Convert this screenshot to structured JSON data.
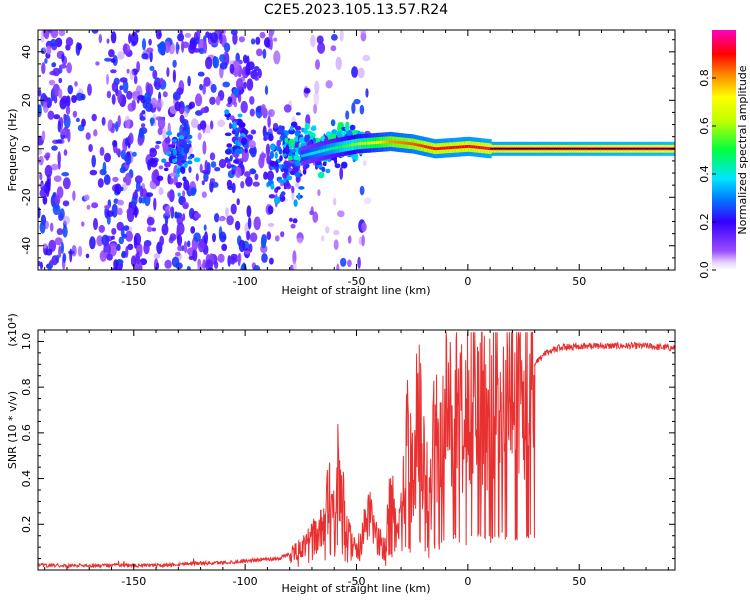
{
  "figure_title": "C2E5.2023.105.13.57.R24",
  "colorbar": {
    "label": "Normalized spectral amplitude",
    "ticks": [
      0.0,
      0.2,
      0.4,
      0.6,
      0.8
    ],
    "tick_labels": [
      "0.0",
      "0.2",
      "0.4",
      "0.6",
      "0.8"
    ],
    "range": [
      0,
      1
    ]
  },
  "chart_data": [
    {
      "type": "heatmap",
      "xlabel": "Height of straight line (km)",
      "ylabel": "Frequency (Hz)",
      "xlim": [
        -193,
        93
      ],
      "ylim": [
        -50,
        49
      ],
      "x_ticks": [
        -150,
        -100,
        -50,
        0,
        50
      ],
      "x_tick_labels": [
        "-150",
        "-100",
        "-50",
        "0",
        "50"
      ],
      "y_ticks": [
        -40,
        -20,
        0,
        20,
        40
      ],
      "y_tick_labels": [
        "-40",
        "-20",
        "0",
        "20",
        "40"
      ],
      "ridge_frequency_hz": 0,
      "ridge_profile": [
        {
          "x": -75,
          "y": -3,
          "amp": 0.35
        },
        {
          "x": -62,
          "y": 0,
          "amp": 0.45
        },
        {
          "x": -50,
          "y": 2,
          "amp": 0.6
        },
        {
          "x": -35,
          "y": 3,
          "amp": 0.8
        },
        {
          "x": -25,
          "y": 2,
          "amp": 0.85
        },
        {
          "x": -15,
          "y": 0,
          "amp": 0.9
        },
        {
          "x": 0,
          "y": 1,
          "amp": 0.92
        },
        {
          "x": 10,
          "y": 0,
          "amp": 0.95
        },
        {
          "x": 93,
          "y": 0,
          "amp": 1.0
        }
      ],
      "colormap": "rainbow (violet=0 → red=1)"
    },
    {
      "type": "line",
      "xlabel": "Height of straight line (km)",
      "ylabel": "SNR (10 * v/v)",
      "yscale_label": "(x10⁴)",
      "xlim": [
        -193,
        93
      ],
      "ylim": [
        0,
        1.05
      ],
      "x_ticks": [
        -150,
        -100,
        -50,
        0,
        50
      ],
      "x_tick_labels": [
        "-150",
        "-100",
        "-50",
        "0",
        "50"
      ],
      "y_ticks": [
        0.2,
        0.4,
        0.6,
        0.8,
        1.0
      ],
      "y_tick_labels": [
        "0.2",
        "0.4",
        "0.6",
        "0.8",
        "1.0"
      ],
      "color": "#e83030",
      "series": [
        {
          "x": [
            -193,
            -180,
            -160,
            -140,
            -130,
            -125,
            -115,
            -105,
            -100,
            -95,
            -85,
            -80,
            -75,
            -70,
            -65,
            -62,
            -60,
            -58,
            -55,
            -52,
            -50,
            -47,
            -45,
            -42,
            -40,
            -37,
            -35,
            -32,
            -30,
            -27,
            -25,
            -22,
            -20,
            -17,
            -15,
            -12,
            -10,
            -7,
            -5,
            -2,
            0,
            3,
            5,
            8,
            10,
            13,
            15,
            18,
            20,
            25,
            30,
            35,
            40,
            50,
            60,
            70,
            80,
            93
          ],
          "y": [
            0.02,
            0.02,
            0.02,
            0.02,
            0.025,
            0.03,
            0.03,
            0.035,
            0.04,
            0.045,
            0.05,
            0.07,
            0.09,
            0.14,
            0.18,
            0.35,
            0.25,
            0.5,
            0.18,
            0.12,
            0.08,
            0.15,
            0.25,
            0.18,
            0.12,
            0.1,
            0.35,
            0.2,
            0.3,
            0.55,
            0.4,
            0.75,
            0.45,
            0.3,
            0.6,
            0.5,
            0.7,
            0.65,
            0.78,
            0.6,
            0.72,
            0.76,
            0.73,
            0.78,
            0.75,
            0.8,
            0.78,
            0.8,
            0.82,
            0.86,
            0.9,
            0.95,
            0.97,
            0.98,
            0.98,
            0.98,
            0.98,
            0.97
          ]
        }
      ]
    }
  ]
}
